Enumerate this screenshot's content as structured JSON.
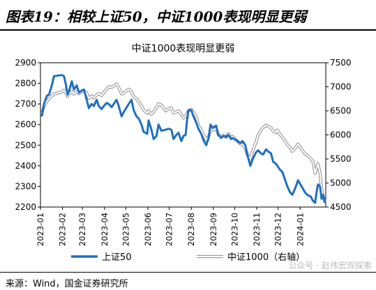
{
  "figure": {
    "title": "图表19：相较上证50，中证1000表现明显更弱",
    "source": "来源：Wind，国金证券研究所",
    "watermark": "公众号 · 赵伟宏观探索"
  },
  "chart_data": {
    "type": "line",
    "title": "中证1000表现明显更弱",
    "x_labels": [
      "2023-01",
      "2023-02",
      "2023-03",
      "2023-04",
      "2023-05",
      "2023-06",
      "2023-07",
      "2023-08",
      "2023-09",
      "2023-10",
      "2023-11",
      "2023-12",
      "2024-01"
    ],
    "y_left": {
      "min": 2200,
      "max": 2900,
      "ticks": [
        2200,
        2300,
        2400,
        2500,
        2600,
        2700,
        2800,
        2900
      ]
    },
    "y_right": {
      "min": 4500,
      "max": 7500,
      "ticks": [
        4500,
        5000,
        5500,
        6000,
        6500,
        7000,
        7500
      ]
    },
    "legend_position": "bottom",
    "series": [
      {
        "name": "上证50",
        "axis": "left",
        "color": "#1f6fbf",
        "points": [
          [
            "2023-01-03",
            2640
          ],
          [
            "2023-01-06",
            2700
          ],
          [
            "2023-01-10",
            2740
          ],
          [
            "2023-01-13",
            2745
          ],
          [
            "2023-01-17",
            2790
          ],
          [
            "2023-01-20",
            2835
          ],
          [
            "2023-01-31",
            2840
          ],
          [
            "2023-02-03",
            2835
          ],
          [
            "2023-02-06",
            2790
          ],
          [
            "2023-02-08",
            2745
          ],
          [
            "2023-02-10",
            2760
          ],
          [
            "2023-02-14",
            2810
          ],
          [
            "2023-02-17",
            2770
          ],
          [
            "2023-02-21",
            2790
          ],
          [
            "2023-02-24",
            2755
          ],
          [
            "2023-02-28",
            2765
          ],
          [
            "2023-03-03",
            2770
          ],
          [
            "2023-03-07",
            2720
          ],
          [
            "2023-03-10",
            2680
          ],
          [
            "2023-03-14",
            2700
          ],
          [
            "2023-03-17",
            2690
          ],
          [
            "2023-03-21",
            2720
          ],
          [
            "2023-03-24",
            2690
          ],
          [
            "2023-03-28",
            2675
          ],
          [
            "2023-03-31",
            2690
          ],
          [
            "2023-04-04",
            2705
          ],
          [
            "2023-04-07",
            2700
          ],
          [
            "2023-04-11",
            2685
          ],
          [
            "2023-04-14",
            2700
          ],
          [
            "2023-04-18",
            2720
          ],
          [
            "2023-04-21",
            2690
          ],
          [
            "2023-04-25",
            2640
          ],
          [
            "2023-04-28",
            2660
          ],
          [
            "2023-05-05",
            2700
          ],
          [
            "2023-05-09",
            2720
          ],
          [
            "2023-05-12",
            2670
          ],
          [
            "2023-05-16",
            2640
          ],
          [
            "2023-05-19",
            2630
          ],
          [
            "2023-05-23",
            2600
          ],
          [
            "2023-05-26",
            2565
          ],
          [
            "2023-05-31",
            2555
          ],
          [
            "2023-06-02",
            2620
          ],
          [
            "2023-06-06",
            2575
          ],
          [
            "2023-06-09",
            2530
          ],
          [
            "2023-06-13",
            2545
          ],
          [
            "2023-06-16",
            2600
          ],
          [
            "2023-06-20",
            2570
          ],
          [
            "2023-06-26",
            2575
          ],
          [
            "2023-06-30",
            2580
          ],
          [
            "2023-07-04",
            2575
          ],
          [
            "2023-07-07",
            2530
          ],
          [
            "2023-07-11",
            2550
          ],
          [
            "2023-07-14",
            2560
          ],
          [
            "2023-07-18",
            2520
          ],
          [
            "2023-07-21",
            2545
          ],
          [
            "2023-07-24",
            2550
          ],
          [
            "2023-07-26",
            2620
          ],
          [
            "2023-07-28",
            2670
          ],
          [
            "2023-08-01",
            2670
          ],
          [
            "2023-08-04",
            2640
          ],
          [
            "2023-08-08",
            2610
          ],
          [
            "2023-08-11",
            2580
          ],
          [
            "2023-08-15",
            2555
          ],
          [
            "2023-08-18",
            2525
          ],
          [
            "2023-08-22",
            2500
          ],
          [
            "2023-08-25",
            2530
          ],
          [
            "2023-08-28",
            2600
          ],
          [
            "2023-08-31",
            2585
          ],
          [
            "2023-09-05",
            2595
          ],
          [
            "2023-09-08",
            2550
          ],
          [
            "2023-09-12",
            2535
          ],
          [
            "2023-09-15",
            2545
          ],
          [
            "2023-09-19",
            2540
          ],
          [
            "2023-09-22",
            2550
          ],
          [
            "2023-09-26",
            2530
          ],
          [
            "2023-09-28",
            2535
          ],
          [
            "2023-10-09",
            2510
          ],
          [
            "2023-10-12",
            2520
          ],
          [
            "2023-10-16",
            2500
          ],
          [
            "2023-10-19",
            2450
          ],
          [
            "2023-10-23",
            2400
          ],
          [
            "2023-10-26",
            2430
          ],
          [
            "2023-10-31",
            2465
          ],
          [
            "2023-11-03",
            2475
          ],
          [
            "2023-11-07",
            2460
          ],
          [
            "2023-11-10",
            2455
          ],
          [
            "2023-11-14",
            2480
          ],
          [
            "2023-11-17",
            2470
          ],
          [
            "2023-11-21",
            2460
          ],
          [
            "2023-11-24",
            2420
          ],
          [
            "2023-11-28",
            2410
          ],
          [
            "2023-11-30",
            2400
          ],
          [
            "2023-12-04",
            2380
          ],
          [
            "2023-12-07",
            2370
          ],
          [
            "2023-12-11",
            2330
          ],
          [
            "2023-12-14",
            2300
          ],
          [
            "2023-12-18",
            2270
          ],
          [
            "2023-12-21",
            2260
          ],
          [
            "2023-12-25",
            2290
          ],
          [
            "2023-12-29",
            2330
          ],
          [
            "2024-01-03",
            2300
          ],
          [
            "2024-01-08",
            2270
          ],
          [
            "2024-01-11",
            2260
          ],
          [
            "2024-01-16",
            2250
          ],
          [
            "2024-01-19",
            2230
          ],
          [
            "2024-01-22",
            2220
          ],
          [
            "2024-01-24",
            2270
          ],
          [
            "2024-01-26",
            2310
          ],
          [
            "2024-01-29",
            2300
          ],
          [
            "2024-01-31",
            2240
          ],
          [
            "2024-02-02",
            2260
          ],
          [
            "2024-02-05",
            2220
          ]
        ]
      },
      {
        "name": "中证1000（右轴）",
        "axis": "right",
        "color": "#b4b4b4",
        "points": [
          [
            "2023-01-03",
            6450
          ],
          [
            "2023-01-06",
            6600
          ],
          [
            "2023-01-10",
            6700
          ],
          [
            "2023-01-13",
            6750
          ],
          [
            "2023-01-17",
            6810
          ],
          [
            "2023-01-20",
            6850
          ],
          [
            "2023-01-31",
            6890
          ],
          [
            "2023-02-03",
            6930
          ],
          [
            "2023-02-06",
            6870
          ],
          [
            "2023-02-08",
            6800
          ],
          [
            "2023-02-10",
            6850
          ],
          [
            "2023-02-14",
            6900
          ],
          [
            "2023-02-17",
            6850
          ],
          [
            "2023-02-21",
            6900
          ],
          [
            "2023-02-24",
            6860
          ],
          [
            "2023-02-28",
            6900
          ],
          [
            "2023-03-03",
            6920
          ],
          [
            "2023-03-07",
            6870
          ],
          [
            "2023-03-10",
            6760
          ],
          [
            "2023-03-14",
            6810
          ],
          [
            "2023-03-17",
            6770
          ],
          [
            "2023-03-21",
            6830
          ],
          [
            "2023-03-24",
            6860
          ],
          [
            "2023-03-28",
            6820
          ],
          [
            "2023-03-31",
            6880
          ],
          [
            "2023-04-04",
            6950
          ],
          [
            "2023-04-07",
            7000
          ],
          [
            "2023-04-11",
            6990
          ],
          [
            "2023-04-14",
            7020
          ],
          [
            "2023-04-18",
            7060
          ],
          [
            "2023-04-21",
            6980
          ],
          [
            "2023-04-25",
            6850
          ],
          [
            "2023-04-28",
            6870
          ],
          [
            "2023-05-05",
            6950
          ],
          [
            "2023-05-09",
            6900
          ],
          [
            "2023-05-12",
            6800
          ],
          [
            "2023-05-16",
            6750
          ],
          [
            "2023-05-19",
            6700
          ],
          [
            "2023-05-23",
            6600
          ],
          [
            "2023-05-26",
            6520
          ],
          [
            "2023-05-31",
            6450
          ],
          [
            "2023-06-02",
            6500
          ],
          [
            "2023-06-06",
            6430
          ],
          [
            "2023-06-09",
            6480
          ],
          [
            "2023-06-13",
            6560
          ],
          [
            "2023-06-16",
            6650
          ],
          [
            "2023-06-20",
            6620
          ],
          [
            "2023-06-26",
            6500
          ],
          [
            "2023-06-30",
            6540
          ],
          [
            "2023-07-04",
            6560
          ],
          [
            "2023-07-07",
            6460
          ],
          [
            "2023-07-11",
            6480
          ],
          [
            "2023-07-14",
            6500
          ],
          [
            "2023-07-18",
            6420
          ],
          [
            "2023-07-21",
            6350
          ],
          [
            "2023-07-24",
            6380
          ],
          [
            "2023-07-26",
            6440
          ],
          [
            "2023-07-28",
            6500
          ],
          [
            "2023-08-01",
            6530
          ],
          [
            "2023-08-04",
            6470
          ],
          [
            "2023-08-08",
            6380
          ],
          [
            "2023-08-11",
            6200
          ],
          [
            "2023-08-15",
            6100
          ],
          [
            "2023-08-18",
            6000
          ],
          [
            "2023-08-22",
            5900
          ],
          [
            "2023-08-25",
            5950
          ],
          [
            "2023-08-28",
            6080
          ],
          [
            "2023-08-31",
            6100
          ],
          [
            "2023-09-05",
            6130
          ],
          [
            "2023-09-08",
            6000
          ],
          [
            "2023-09-12",
            5960
          ],
          [
            "2023-09-15",
            5990
          ],
          [
            "2023-09-19",
            5950
          ],
          [
            "2023-09-22",
            6030
          ],
          [
            "2023-09-26",
            5930
          ],
          [
            "2023-09-28",
            5970
          ],
          [
            "2023-10-09",
            5810
          ],
          [
            "2023-10-12",
            5800
          ],
          [
            "2023-10-16",
            5720
          ],
          [
            "2023-10-19",
            5580
          ],
          [
            "2023-10-23",
            5500
          ],
          [
            "2023-10-26",
            5650
          ],
          [
            "2023-10-31",
            5850
          ],
          [
            "2023-11-03",
            6000
          ],
          [
            "2023-11-07",
            6100
          ],
          [
            "2023-11-10",
            6150
          ],
          [
            "2023-11-14",
            6200
          ],
          [
            "2023-11-17",
            6180
          ],
          [
            "2023-11-21",
            6150
          ],
          [
            "2023-11-24",
            6080
          ],
          [
            "2023-11-28",
            6050
          ],
          [
            "2023-11-30",
            6100
          ],
          [
            "2023-12-04",
            6000
          ],
          [
            "2023-12-07",
            5950
          ],
          [
            "2023-12-11",
            5870
          ],
          [
            "2023-12-14",
            5800
          ],
          [
            "2023-12-18",
            5730
          ],
          [
            "2023-12-21",
            5660
          ],
          [
            "2023-12-25",
            5720
          ],
          [
            "2023-12-29",
            5810
          ],
          [
            "2024-01-03",
            5700
          ],
          [
            "2024-01-08",
            5600
          ],
          [
            "2024-01-11",
            5580
          ],
          [
            "2024-01-16",
            5500
          ],
          [
            "2024-01-19",
            5450
          ],
          [
            "2024-01-22",
            5200
          ],
          [
            "2024-01-24",
            5300
          ],
          [
            "2024-01-26",
            5400
          ],
          [
            "2024-01-29",
            5200
          ],
          [
            "2024-01-31",
            4900
          ],
          [
            "2024-02-02",
            4750
          ],
          [
            "2024-02-05",
            4600
          ]
        ]
      }
    ]
  }
}
